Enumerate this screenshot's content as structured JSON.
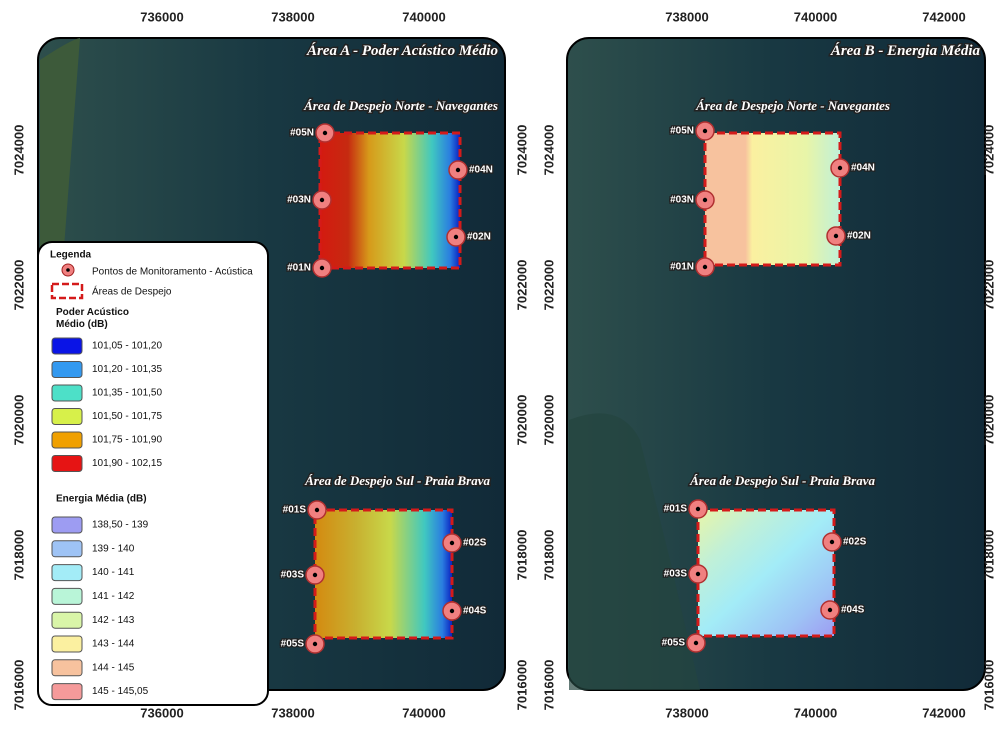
{
  "panels": [
    {
      "title": "Área A - Poder Acústico Médio",
      "x_labels": [
        "736000",
        "738000",
        "740000"
      ],
      "y_labels": [
        "7024000",
        "7022000",
        "7020000",
        "7018000",
        "7016000"
      ],
      "areas": [
        {
          "title": "Área de Despejo Norte - Navegantes",
          "points": [
            "#05N",
            "#04N",
            "#03N",
            "#02N",
            "#01N"
          ]
        },
        {
          "title": "Área de Despejo Sul - Praia Brava",
          "points": [
            "#01S",
            "#02S",
            "#03S",
            "#04S",
            "#05S"
          ]
        }
      ]
    },
    {
      "title": "Área B - Energia Média",
      "x_labels": [
        "738000",
        "740000",
        "742000"
      ],
      "y_labels": [
        "7024000",
        "7022000",
        "7020000",
        "7018000",
        "7016000"
      ],
      "areas": [
        {
          "title": "Área de Despejo Norte - Navegantes",
          "points": [
            "#05N",
            "#04N",
            "#03N",
            "#02N",
            "#01N"
          ]
        },
        {
          "title": "Área de Despejo Sul - Praia Brava",
          "points": [
            "#01S",
            "#02S",
            "#03S",
            "#04S",
            "#05S"
          ]
        }
      ]
    }
  ],
  "legend": {
    "title": "Legenda",
    "items": [
      "Pontos de Monitoramento - Acústica",
      "Áreas de Despejo"
    ],
    "groups": [
      {
        "title": "Poder Acústico Médio (dB)",
        "classes": [
          {
            "label": "101,05 - 101,20",
            "color": "#0a14e6"
          },
          {
            "label": "101,20 - 101,35",
            "color": "#3399f0"
          },
          {
            "label": "101,35 - 101,50",
            "color": "#4de0c8"
          },
          {
            "label": "101,50 - 101,75",
            "color": "#d7f04a"
          },
          {
            "label": "101,75 - 101,90",
            "color": "#f0a000"
          },
          {
            "label": "101,90 - 102,15",
            "color": "#e61414"
          }
        ]
      },
      {
        "title": "Energia Média (dB)",
        "classes": [
          {
            "label": "138,50 - 139",
            "color": "#9d9cf2"
          },
          {
            "label": "139 - 140",
            "color": "#9ec3f5"
          },
          {
            "label": "140 - 141",
            "color": "#a3ecf7"
          },
          {
            "label": "141 - 142",
            "color": "#b9f5d8"
          },
          {
            "label": "142 - 143",
            "color": "#d9f5a8"
          },
          {
            "label": "143 - 144",
            "color": "#fbf0a0"
          },
          {
            "label": "144 - 145",
            "color": "#f7c29e"
          },
          {
            "label": "145 - 145,05",
            "color": "#f59a9a"
          }
        ]
      }
    ]
  }
}
